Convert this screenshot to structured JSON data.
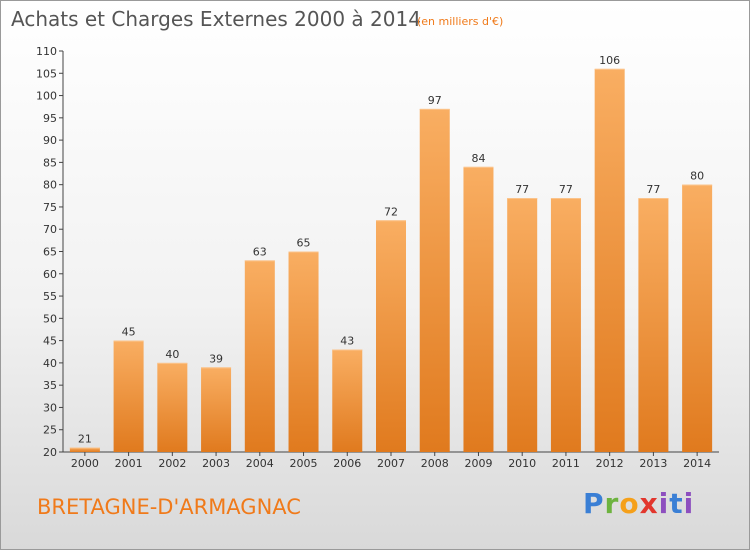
{
  "header": {
    "title": "Achats et Charges Externes 2000 à 2014",
    "subtitle": "(en milliers d'€)"
  },
  "footer": {
    "location": "BRETAGNE-D'ARMAGNAC",
    "logo_text": "Proxiti"
  },
  "colors": {
    "bar_light": "#f8a85a",
    "bar_dark": "#e07a1e",
    "accent": "#f07a1a"
  },
  "chart_data": {
    "type": "bar",
    "title": "Achats et Charges Externes 2000 à 2014",
    "subtitle": "(en milliers d'€)",
    "categories": [
      "2000",
      "2001",
      "2002",
      "2003",
      "2004",
      "2005",
      "2006",
      "2007",
      "2008",
      "2009",
      "2010",
      "2011",
      "2012",
      "2013",
      "2014"
    ],
    "values": [
      21,
      45,
      40,
      39,
      63,
      65,
      43,
      72,
      97,
      84,
      77,
      77,
      106,
      77,
      80
    ],
    "ylim": [
      20,
      110
    ],
    "yticks": [
      20,
      25,
      30,
      35,
      40,
      45,
      50,
      55,
      60,
      65,
      70,
      75,
      80,
      85,
      90,
      95,
      100,
      105,
      110
    ],
    "grid": false,
    "data_labels": true
  }
}
